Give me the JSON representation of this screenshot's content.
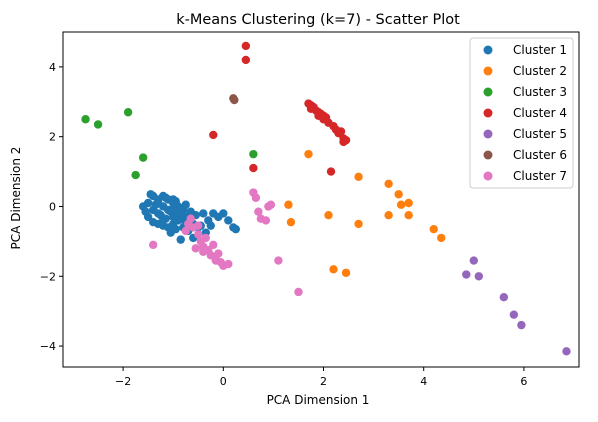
{
  "chart_data": {
    "type": "scatter",
    "title": "k-Means Clustering (k=7) - Scatter Plot",
    "xlabel": "PCA Dimension 1",
    "ylabel": "PCA Dimension 2",
    "xlim": [
      -3.2,
      7.1
    ],
    "ylim": [
      -4.6,
      5.0
    ],
    "xticks": [
      -2,
      0,
      2,
      4,
      6
    ],
    "yticks": [
      -4,
      -2,
      0,
      2,
      4
    ],
    "xtick_labels": [
      "−2",
      "0",
      "2",
      "4",
      "6"
    ],
    "ytick_labels": [
      "−4",
      "−2",
      "0",
      "2",
      "4"
    ],
    "grid": false,
    "legend_position": "top-right",
    "series": [
      {
        "name": "Cluster 1",
        "color": "#1f77b4",
        "points": [
          [
            -1.2,
            0.0
          ],
          [
            -1.1,
            -0.1
          ],
          [
            -1.0,
            0.1
          ],
          [
            -0.9,
            -0.2
          ],
          [
            -1.3,
            0.2
          ],
          [
            -1.4,
            -0.1
          ],
          [
            -1.5,
            0.1
          ],
          [
            -1.0,
            -0.3
          ],
          [
            -0.8,
            -0.1
          ],
          [
            -0.7,
            -0.3
          ],
          [
            -1.2,
            -0.4
          ],
          [
            -1.3,
            -0.2
          ],
          [
            -1.1,
            0.2
          ],
          [
            -0.9,
            0.0
          ],
          [
            -0.6,
            -0.5
          ],
          [
            -0.8,
            -0.6
          ],
          [
            -1.0,
            -0.5
          ],
          [
            -1.4,
            0.3
          ],
          [
            -1.5,
            -0.3
          ],
          [
            -1.6,
            0.0
          ],
          [
            -1.2,
            0.3
          ],
          [
            -1.0,
            0.2
          ],
          [
            -0.9,
            -0.4
          ],
          [
            -0.7,
            -0.7
          ],
          [
            -0.5,
            -0.6
          ],
          [
            -0.4,
            -0.2
          ],
          [
            -0.3,
            -0.4
          ],
          [
            -0.2,
            -0.2
          ],
          [
            -0.1,
            -0.3
          ],
          [
            0.0,
            -0.2
          ],
          [
            0.1,
            -0.4
          ],
          [
            0.2,
            -0.6
          ],
          [
            0.25,
            -0.65
          ],
          [
            -1.3,
            -0.5
          ],
          [
            -1.1,
            -0.6
          ],
          [
            -0.6,
            -0.9
          ],
          [
            -0.85,
            -0.95
          ],
          [
            -1.45,
            0.35
          ],
          [
            -1.25,
            -0.25
          ],
          [
            -1.05,
            -0.15
          ],
          [
            -0.75,
            0.05
          ],
          [
            -1.35,
            0.05
          ],
          [
            -1.15,
            0.25
          ],
          [
            -0.95,
            0.15
          ],
          [
            -0.65,
            -0.15
          ],
          [
            -1.55,
            -0.15
          ],
          [
            -0.55,
            -0.25
          ],
          [
            -1.2,
            -0.55
          ],
          [
            -0.85,
            -0.35
          ],
          [
            -0.45,
            -0.55
          ],
          [
            -0.35,
            -0.75
          ],
          [
            -0.25,
            -0.55
          ],
          [
            -1.05,
            -0.75
          ],
          [
            -0.75,
            -0.45
          ],
          [
            -1.3,
            0.1
          ],
          [
            -1.0,
            -0.05
          ],
          [
            -0.8,
            -0.25
          ],
          [
            -1.15,
            -0.35
          ],
          [
            -0.95,
            -0.65
          ],
          [
            -1.4,
            -0.45
          ]
        ]
      },
      {
        "name": "Cluster 2",
        "color": "#ff7f0e",
        "points": [
          [
            1.7,
            1.5
          ],
          [
            2.7,
            0.85
          ],
          [
            1.3,
            0.05
          ],
          [
            1.35,
            -0.45
          ],
          [
            2.1,
            -0.25
          ],
          [
            2.7,
            -0.5
          ],
          [
            2.2,
            -1.8
          ],
          [
            2.45,
            -1.9
          ],
          [
            3.3,
            0.65
          ],
          [
            3.3,
            -0.25
          ],
          [
            3.5,
            0.35
          ],
          [
            3.55,
            0.05
          ],
          [
            3.7,
            0.1
          ],
          [
            3.7,
            -0.25
          ],
          [
            4.2,
            -0.65
          ],
          [
            4.35,
            -0.9
          ]
        ]
      },
      {
        "name": "Cluster 3",
        "color": "#2ca02c",
        "points": [
          [
            -2.75,
            2.5
          ],
          [
            -2.5,
            2.35
          ],
          [
            -1.9,
            2.7
          ],
          [
            -1.6,
            1.4
          ],
          [
            -1.75,
            0.9
          ],
          [
            0.6,
            1.5
          ]
        ]
      },
      {
        "name": "Cluster 4",
        "color": "#d62728",
        "points": [
          [
            0.45,
            4.6
          ],
          [
            0.45,
            4.2
          ],
          [
            -0.2,
            2.05
          ],
          [
            0.6,
            1.1
          ],
          [
            2.15,
            1.0
          ],
          [
            1.7,
            2.95
          ],
          [
            1.75,
            2.9
          ],
          [
            1.8,
            2.85
          ],
          [
            1.85,
            2.75
          ],
          [
            1.9,
            2.7
          ],
          [
            1.95,
            2.65
          ],
          [
            2.0,
            2.6
          ],
          [
            2.05,
            2.55
          ],
          [
            2.1,
            2.4
          ],
          [
            2.2,
            2.3
          ],
          [
            2.25,
            2.2
          ],
          [
            2.35,
            2.15
          ],
          [
            2.4,
            1.95
          ],
          [
            2.45,
            1.9
          ],
          [
            1.75,
            2.8
          ],
          [
            1.9,
            2.6
          ],
          [
            2.0,
            2.5
          ],
          [
            2.3,
            2.1
          ],
          [
            2.4,
            1.85
          ]
        ]
      },
      {
        "name": "Cluster 5",
        "color": "#9467bd",
        "points": [
          [
            4.85,
            -1.95
          ],
          [
            5.0,
            -1.55
          ],
          [
            5.1,
            -2.0
          ],
          [
            5.6,
            -2.6
          ],
          [
            5.8,
            -3.1
          ],
          [
            5.95,
            -3.4
          ],
          [
            6.85,
            -4.15
          ]
        ]
      },
      {
        "name": "Cluster 6",
        "color": "#8c564b",
        "points": [
          [
            0.2,
            3.1
          ],
          [
            0.22,
            3.05
          ]
        ]
      },
      {
        "name": "Cluster 7",
        "color": "#e377c2",
        "points": [
          [
            0.6,
            0.4
          ],
          [
            0.65,
            0.25
          ],
          [
            0.7,
            -0.15
          ],
          [
            0.75,
            -0.35
          ],
          [
            0.85,
            -0.4
          ],
          [
            0.9,
            0.0
          ],
          [
            0.95,
            0.05
          ],
          [
            1.1,
            -1.55
          ],
          [
            1.5,
            -2.45
          ],
          [
            -1.4,
            -1.1
          ],
          [
            -0.7,
            -0.5
          ],
          [
            -0.6,
            -0.6
          ],
          [
            -0.5,
            -0.8
          ],
          [
            -0.45,
            -1.0
          ],
          [
            -0.4,
            -1.15
          ],
          [
            -0.3,
            -1.25
          ],
          [
            -0.25,
            -1.4
          ],
          [
            -0.15,
            -1.5
          ],
          [
            -0.05,
            -1.6
          ],
          [
            0.0,
            -1.7
          ],
          [
            0.1,
            -1.65
          ],
          [
            -0.55,
            -1.2
          ],
          [
            -0.35,
            -0.9
          ],
          [
            -0.65,
            -0.35
          ],
          [
            -0.2,
            -1.1
          ],
          [
            -0.1,
            -1.35
          ],
          [
            -0.5,
            -0.55
          ],
          [
            -0.75,
            -0.7
          ],
          [
            -0.4,
            -1.3
          ],
          [
            -0.15,
            -1.55
          ]
        ]
      }
    ]
  }
}
